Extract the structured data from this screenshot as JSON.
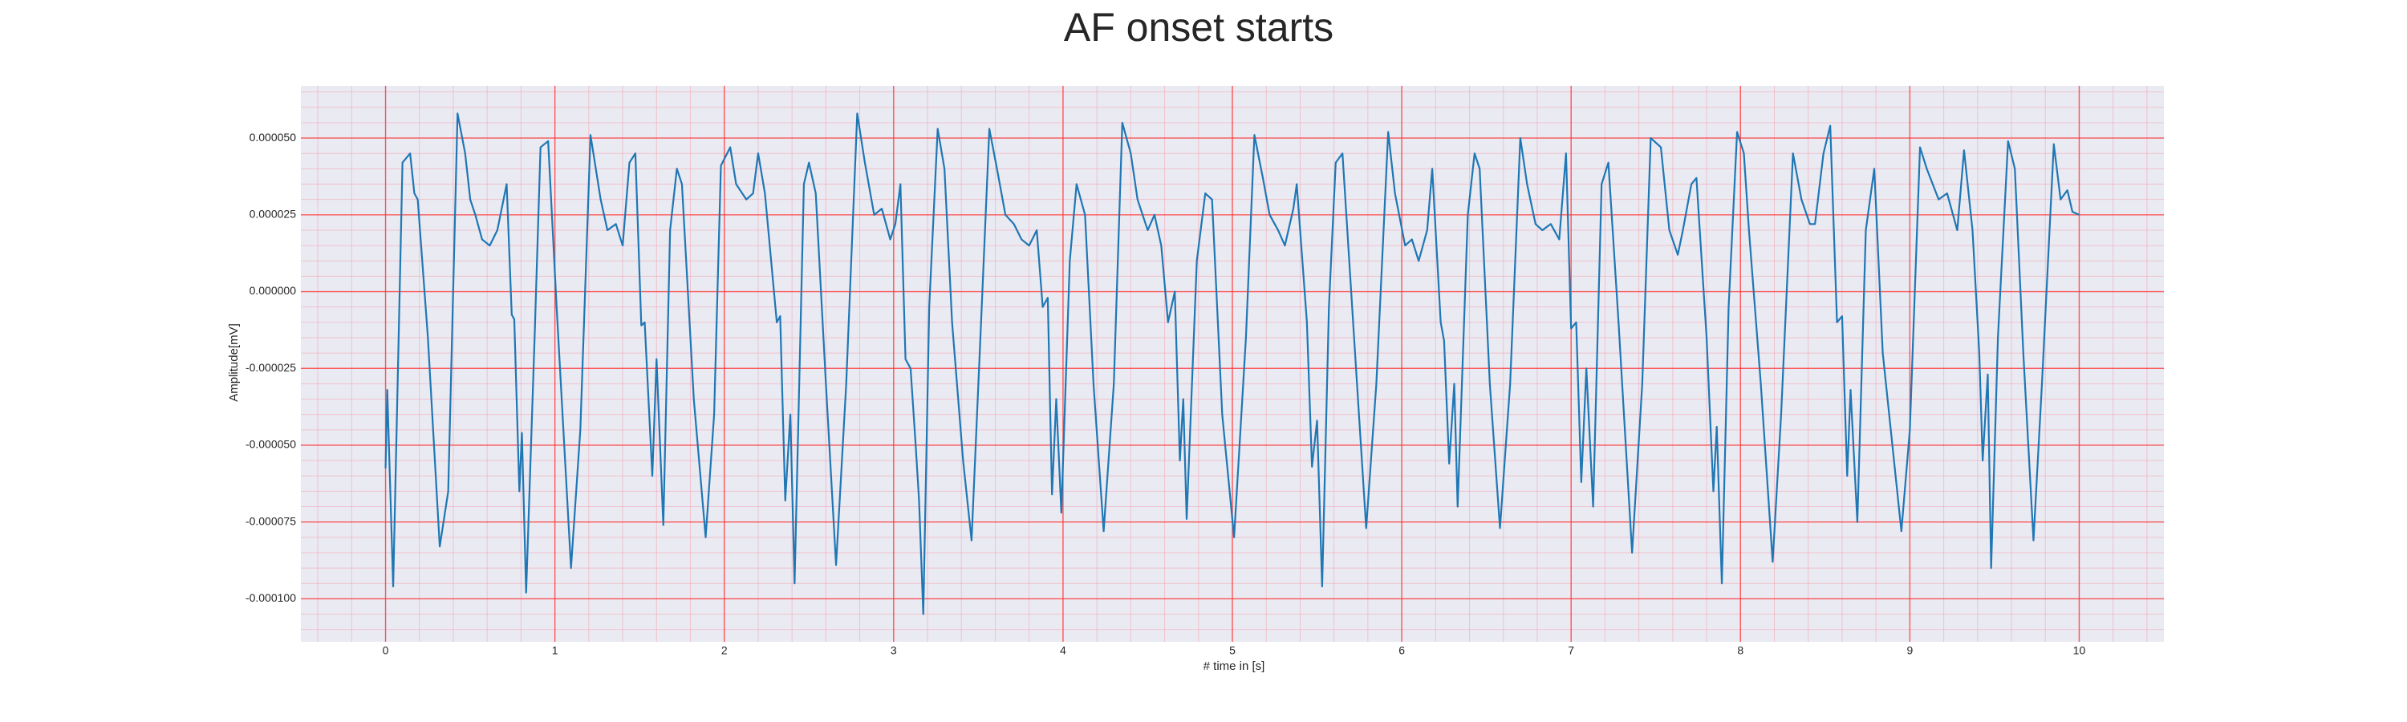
{
  "chart_data": {
    "type": "line",
    "title": "AF onset starts",
    "xlabel": "# time in [s]",
    "ylabel": "Amplitude[mV]",
    "color": "#1f77b4",
    "grid": true,
    "minor_grid": true,
    "xlim": [
      -0.5,
      10.5
    ],
    "xticks": [
      0,
      1,
      2,
      3,
      4,
      5,
      6,
      7,
      8,
      9,
      10
    ],
    "ylim": [
      -0.000114,
      6.7e-05
    ],
    "yticks": [
      {
        "value": -0.0001,
        "label": "-0.000100"
      },
      {
        "value": -7.5e-05,
        "label": "-0.000075"
      },
      {
        "value": -5e-05,
        "label": "-0.000050"
      },
      {
        "value": -2.5e-05,
        "label": "-0.000025"
      },
      {
        "value": 0,
        "label": "0.000000"
      },
      {
        "value": 2.5e-05,
        "label": "0.000025"
      },
      {
        "value": 5e-05,
        "label": "0.000050"
      }
    ],
    "x": [
      0,
      0.01,
      0.045,
      0.1,
      0.145,
      0.17,
      0.19,
      0.25,
      0.32,
      0.37,
      0.425,
      0.47,
      0.5,
      0.53,
      0.57,
      0.615,
      0.66,
      0.715,
      0.745,
      0.76,
      0.79,
      0.805,
      0.83,
      0.88,
      0.915,
      0.96,
      1.01,
      1.095,
      1.15,
      1.21,
      1.27,
      1.31,
      1.36,
      1.4,
      1.44,
      1.475,
      1.51,
      1.53,
      1.575,
      1.6,
      1.64,
      1.68,
      1.72,
      1.75,
      1.82,
      1.89,
      1.94,
      1.98,
      2.035,
      2.07,
      2.13,
      2.17,
      2.2,
      2.24,
      2.31,
      2.33,
      2.36,
      2.39,
      2.415,
      2.47,
      2.5,
      2.54,
      2.6,
      2.66,
      2.72,
      2.785,
      2.83,
      2.885,
      2.93,
      2.98,
      3.01,
      3.04,
      3.07,
      3.1,
      3.13,
      3.15,
      3.175,
      3.21,
      3.26,
      3.3,
      3.345,
      3.41,
      3.46,
      3.52,
      3.565,
      3.61,
      3.66,
      3.71,
      3.755,
      3.8,
      3.845,
      3.88,
      3.91,
      3.935,
      3.96,
      3.99,
      4.04,
      4.08,
      4.13,
      4.18,
      4.24,
      4.3,
      4.35,
      4.4,
      4.44,
      4.5,
      4.54,
      4.58,
      4.62,
      4.66,
      4.69,
      4.71,
      4.73,
      4.79,
      4.84,
      4.88,
      4.94,
      5.01,
      5.08,
      5.13,
      5.18,
      5.22,
      5.27,
      5.31,
      5.36,
      5.38,
      5.44,
      5.47,
      5.5,
      5.53,
      5.57,
      5.61,
      5.65,
      5.73,
      5.79,
      5.85,
      5.92,
      5.96,
      6.02,
      6.06,
      6.1,
      6.15,
      6.18,
      6.23,
      6.25,
      6.28,
      6.31,
      6.33,
      6.39,
      6.43,
      6.46,
      6.52,
      6.58,
      6.64,
      6.7,
      6.74,
      6.79,
      6.83,
      6.88,
      6.93,
      6.97,
      7.0,
      7.03,
      7.06,
      7.09,
      7.13,
      7.18,
      7.22,
      7.28,
      7.36,
      7.42,
      7.47,
      7.53,
      7.58,
      7.63,
      7.66,
      7.71,
      7.74,
      7.8,
      7.84,
      7.86,
      7.89,
      7.93,
      7.98,
      8.02,
      8.05,
      8.12,
      8.19,
      8.24,
      8.31,
      8.36,
      8.41,
      8.44,
      8.49,
      8.53,
      8.57,
      8.6,
      8.63,
      8.65,
      8.69,
      8.74,
      8.79,
      8.84,
      8.95,
      9.0,
      9.06,
      9.1,
      9.17,
      9.22,
      9.28,
      9.32,
      9.37,
      9.41,
      9.43,
      9.46,
      9.48,
      9.52,
      9.58,
      9.62,
      9.67,
      9.73,
      9.78,
      9.85,
      9.89,
      9.93,
      9.96,
      10.0
    ],
    "values": [
      -5.75e-05,
      -3.2e-05,
      -9.6e-05,
      4.2e-05,
      4.5e-05,
      3.2e-05,
      3e-05,
      -1.5e-05,
      -8.3e-05,
      -6.5e-05,
      5.8e-05,
      4.5e-05,
      3e-05,
      2.5e-05,
      1.7e-05,
      1.5e-05,
      2e-05,
      3.5e-05,
      -7.5e-06,
      -9e-06,
      -6.5e-05,
      -4.6e-05,
      -9.8e-05,
      -1.5e-05,
      4.7e-05,
      4.9e-05,
      -5e-06,
      -9e-05,
      -4.5e-05,
      5.1e-05,
      3e-05,
      2e-05,
      2.2e-05,
      1.5e-05,
      4.2e-05,
      4.5e-05,
      -1.1e-05,
      -1e-05,
      -6e-05,
      -2.2e-05,
      -7.6e-05,
      2e-05,
      4e-05,
      3.5e-05,
      -3.5e-05,
      -8e-05,
      -4e-05,
      4.1e-05,
      4.7e-05,
      3.5e-05,
      3e-05,
      3.2e-05,
      4.5e-05,
      3.2e-05,
      -1e-05,
      -8e-06,
      -6.8e-05,
      -4e-05,
      -9.5e-05,
      3.5e-05,
      4.2e-05,
      3.2e-05,
      -3e-05,
      -8.9e-05,
      -3e-05,
      5.8e-05,
      4.2e-05,
      2.5e-05,
      2.7e-05,
      1.7e-05,
      2.2e-05,
      3.5e-05,
      -2.2e-05,
      -2.5e-05,
      -5e-05,
      -6.8e-05,
      -0.000105,
      -5e-06,
      5.3e-05,
      4e-05,
      -1e-05,
      -5.5e-05,
      -8.1e-05,
      -5e-06,
      5.3e-05,
      4e-05,
      2.5e-05,
      2.2e-05,
      1.7e-05,
      1.5e-05,
      2e-05,
      -5e-06,
      -2e-06,
      -6.6e-05,
      -3.5e-05,
      -7.2e-05,
      1e-05,
      3.5e-05,
      2.5e-05,
      -3e-05,
      -7.8e-05,
      -3e-05,
      5.5e-05,
      4.5e-05,
      3e-05,
      2e-05,
      2.5e-05,
      1.5e-05,
      -1e-05,
      0,
      -5.5e-05,
      -3.5e-05,
      -7.4e-05,
      1e-05,
      3.2e-05,
      3e-05,
      -4e-05,
      -8e-05,
      -1.5e-05,
      5.1e-05,
      3.7e-05,
      2.5e-05,
      2e-05,
      1.5e-05,
      2.7e-05,
      3.5e-05,
      -1e-05,
      -5.7e-05,
      -4.2e-05,
      -9.6e-05,
      -5e-06,
      4.2e-05,
      4.5e-05,
      -2.5e-05,
      -7.7e-05,
      -3e-05,
      5.2e-05,
      3.2e-05,
      1.5e-05,
      1.7e-05,
      1e-05,
      2e-05,
      4e-05,
      -1e-05,
      -1.6e-05,
      -5.6e-05,
      -3e-05,
      -7e-05,
      2.5e-05,
      4.5e-05,
      4e-05,
      -3e-05,
      -7.7e-05,
      -3e-05,
      5e-05,
      3.5e-05,
      2.2e-05,
      2e-05,
      2.2e-05,
      1.7e-05,
      4.5e-05,
      -1.2e-05,
      -1e-05,
      -6.2e-05,
      -2.5e-05,
      -7e-05,
      3.5e-05,
      4.2e-05,
      -1e-05,
      -8.5e-05,
      -3e-05,
      5e-05,
      4.7e-05,
      2e-05,
      1.2e-05,
      2e-05,
      3.5e-05,
      3.7e-05,
      -1.5e-05,
      -6.5e-05,
      -4.4e-05,
      -9.5e-05,
      -5e-06,
      5.2e-05,
      4.5e-05,
      2e-05,
      -3e-05,
      -8.8e-05,
      -4e-05,
      4.5e-05,
      3e-05,
      2.2e-05,
      2.2e-05,
      4.5e-05,
      5.4e-05,
      -1e-05,
      -8e-06,
      -6e-05,
      -3.2e-05,
      -7.5e-05,
      2e-05,
      4e-05,
      -2e-05,
      -7.8e-05,
      -4.5e-05,
      4.7e-05,
      4e-05,
      3e-05,
      3.2e-05,
      2e-05,
      4.6e-05,
      2e-05,
      -2e-05,
      -5.5e-05,
      -2.7e-05,
      -9e-05,
      -1.5e-05,
      4.9e-05,
      4e-05,
      -2e-05,
      -8.1e-05,
      -3e-05,
      4.8e-05,
      3e-05,
      3.3e-05,
      2.6e-05,
      2.5e-05
    ]
  }
}
